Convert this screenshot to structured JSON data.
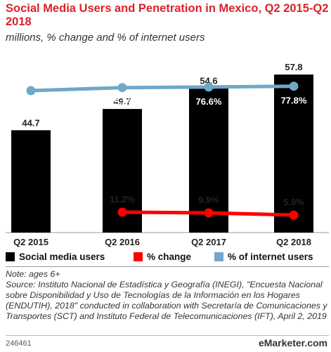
{
  "chart_data": {
    "type": "bar",
    "title": "Social Media Users and Penetration in Mexico, Q2 2015-Q2 2018",
    "subtitle": "millions, % change and % of internet users",
    "categories": [
      "Q2 2015",
      "Q2 2016",
      "Q2 2017",
      "Q2 2018"
    ],
    "series": [
      {
        "name": "Social media users",
        "kind": "bar",
        "values": [
          44.7,
          49.7,
          54.6,
          57.8
        ],
        "labels": [
          "44.7",
          "49.7",
          "54.6",
          "57.8"
        ],
        "color": "#000000"
      },
      {
        "name": "% change",
        "kind": "line",
        "values": [
          null,
          11.2,
          9.9,
          5.9
        ],
        "labels": [
          null,
          "11.2%",
          "9.9%",
          "5.9%"
        ],
        "color": "#ff0000"
      },
      {
        "name": "% of internet users",
        "kind": "line",
        "values": [
          71.5,
          75.8,
          76.6,
          77.8
        ],
        "labels": [
          "71.5%",
          "75.8%",
          "76.6%",
          "77.8%"
        ],
        "color": "#6fa8c8"
      }
    ],
    "legend_position": "bottom"
  },
  "notes": {
    "note": "Note: ages 6+",
    "source": "Source: Instituto Nacional de Estadística y Geografía (INEGI), \"Encuesta Nacional sobre Disponibilidad y Uso de Tecnologías de la Información en los Hogares (ENDUTIH), 2018\" conducted in collaboration with Secretaría de Comunicaciones y Transportes (SCT) and Instituto Federal de Telecomunicaciones (IFT), April 2, 2019"
  },
  "footer": {
    "chart_id": "246461",
    "brand": "eMarketer.com"
  }
}
